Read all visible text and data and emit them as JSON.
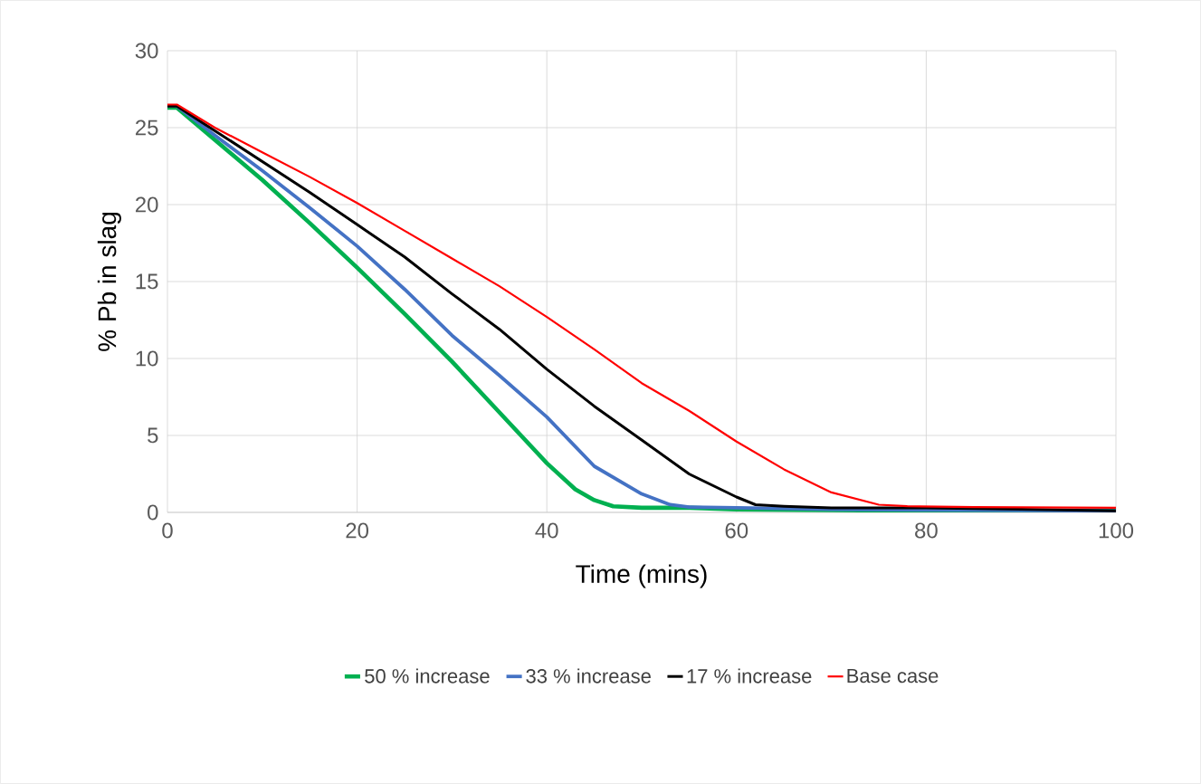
{
  "chart_data": {
    "type": "line",
    "xlabel": "Time (mins)",
    "ylabel": "% Pb in slag",
    "xlim": [
      0,
      100
    ],
    "ylim": [
      0,
      30
    ],
    "xticks": [
      0,
      20,
      40,
      60,
      80,
      100
    ],
    "yticks": [
      0,
      5,
      10,
      15,
      20,
      25,
      30
    ],
    "grid": true,
    "legend": "bottom",
    "marker": "none",
    "line_style": "solid",
    "series": [
      {
        "name": "50 % increase",
        "color": "#00b050",
        "x": [
          0,
          1,
          5,
          10,
          15,
          20,
          25,
          30,
          35,
          40,
          43,
          45,
          47,
          50,
          55,
          60,
          70,
          80,
          100
        ],
        "values": [
          26.3,
          26.3,
          24.2,
          21.6,
          18.8,
          15.9,
          12.9,
          9.8,
          6.5,
          3.2,
          1.5,
          0.8,
          0.4,
          0.3,
          0.3,
          0.2,
          0.15,
          0.1,
          0.1
        ]
      },
      {
        "name": "33 % increase",
        "color": "#4472c4",
        "x": [
          0,
          1,
          5,
          10,
          15,
          20,
          25,
          30,
          35,
          40,
          45,
          50,
          53,
          55,
          60,
          70,
          80,
          100
        ],
        "values": [
          26.4,
          26.4,
          24.5,
          22.2,
          19.8,
          17.3,
          14.5,
          11.5,
          8.9,
          6.2,
          3.0,
          1.2,
          0.5,
          0.35,
          0.3,
          0.2,
          0.15,
          0.1
        ]
      },
      {
        "name": "17 % increase",
        "color": "#000000",
        "x": [
          0,
          1,
          5,
          10,
          15,
          20,
          25,
          30,
          35,
          40,
          45,
          50,
          55,
          60,
          62,
          65,
          70,
          80,
          90,
          100
        ],
        "values": [
          26.4,
          26.4,
          24.8,
          22.8,
          20.8,
          18.7,
          16.6,
          14.2,
          11.9,
          9.3,
          6.9,
          4.7,
          2.5,
          1.0,
          0.5,
          0.4,
          0.3,
          0.3,
          0.2,
          0.1
        ]
      },
      {
        "name": "Base case",
        "color": "#ff0000",
        "x": [
          0,
          1,
          5,
          10,
          15,
          20,
          25,
          30,
          35,
          40,
          45,
          50,
          55,
          60,
          65,
          70,
          75,
          78,
          85,
          100
        ],
        "values": [
          26.5,
          26.5,
          25.0,
          23.4,
          21.8,
          20.1,
          18.3,
          16.5,
          14.7,
          12.7,
          10.6,
          8.4,
          6.6,
          4.6,
          2.8,
          1.3,
          0.5,
          0.4,
          0.35,
          0.3
        ]
      }
    ]
  }
}
